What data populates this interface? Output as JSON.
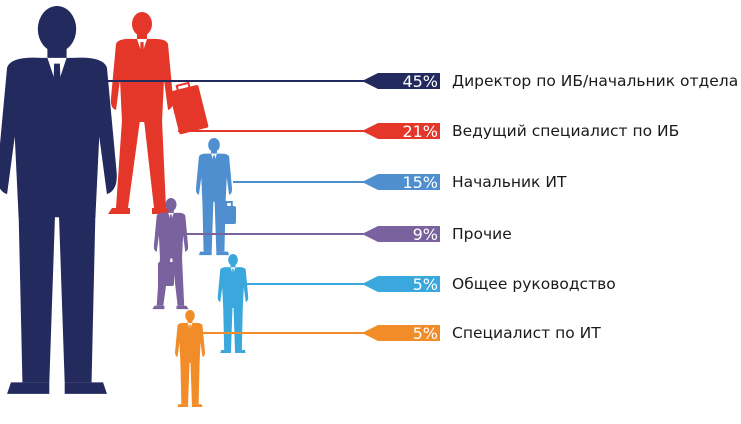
{
  "chart_data": {
    "type": "bar",
    "title": "",
    "categories": [
      "Директор по ИБ/начальник отдела",
      "Ведущий специалист по ИБ",
      "Начальник ИТ",
      "Прочие",
      "Общее руководство",
      "Специалист по ИТ"
    ],
    "values": [
      45,
      21,
      15,
      9,
      5,
      5
    ],
    "value_labels": [
      "45%",
      "21%",
      "15%",
      "9%",
      "5%",
      "5%"
    ],
    "colors": [
      "#232b5e",
      "#e5362a",
      "#4f8fd0",
      "#7a629f",
      "#3aa7dd",
      "#f28c28"
    ],
    "unit": "%"
  }
}
